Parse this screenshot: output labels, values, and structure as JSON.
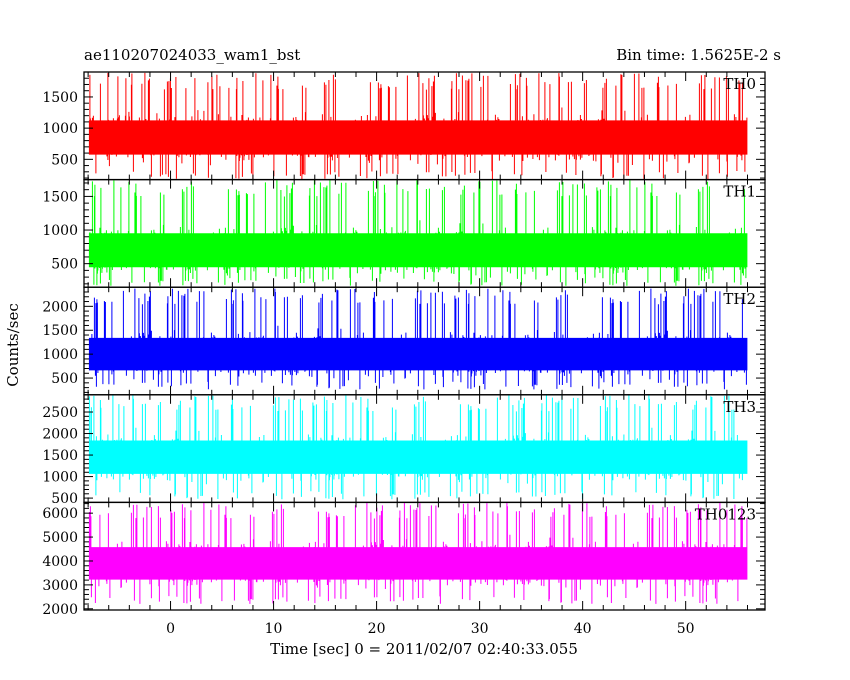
{
  "header": {
    "left_title": "ae110207024033_wam1_bst",
    "right_title": "Bin time: 1.5625E-2 s"
  },
  "axes": {
    "ylabel": "Counts/sec",
    "xlabel": "Time [sec] 0 = 2011/02/07 02:40:33.055"
  },
  "chart_data": {
    "type": "line",
    "x": {
      "range": [
        -8.4,
        57.7
      ],
      "start": -7.88,
      "end": 55.94,
      "bin": 0.015625,
      "ticks": [
        0,
        10,
        20,
        30,
        40,
        50
      ],
      "minor_step": 2
    },
    "series": [
      {
        "name": "TH0",
        "color": "#ff0000",
        "ylim": [
          175,
          1900
        ],
        "ticks": [
          500,
          1000,
          1500
        ],
        "minor_step": 100,
        "mean": 850,
        "low": 180,
        "high": 1890
      },
      {
        "name": "TH1",
        "color": "#00ff00",
        "ylim": [
          150,
          1750
        ],
        "ticks": [
          500,
          1000,
          1500
        ],
        "minor_step": 100,
        "mean": 700,
        "low": 170,
        "high": 1750
      },
      {
        "name": "TH2",
        "color": "#0000ff",
        "ylim": [
          150,
          2400
        ],
        "ticks": [
          500,
          1000,
          1500,
          2000
        ],
        "minor_step": 100,
        "mean": 1000,
        "low": 260,
        "high": 2380
      },
      {
        "name": "TH3",
        "color": "#00ffff",
        "ylim": [
          400,
          2900
        ],
        "ticks": [
          500,
          1000,
          1500,
          2000,
          2500
        ],
        "minor_step": 100,
        "mean": 1450,
        "low": 470,
        "high": 2900
      },
      {
        "name": "TH0123",
        "color": "#ff00ff",
        "ylim": [
          1950,
          6450
        ],
        "ticks": [
          2000,
          3000,
          4000,
          5000,
          6000
        ],
        "minor_step": 200,
        "mean": 3900,
        "low": 2200,
        "high": 6450
      }
    ]
  }
}
